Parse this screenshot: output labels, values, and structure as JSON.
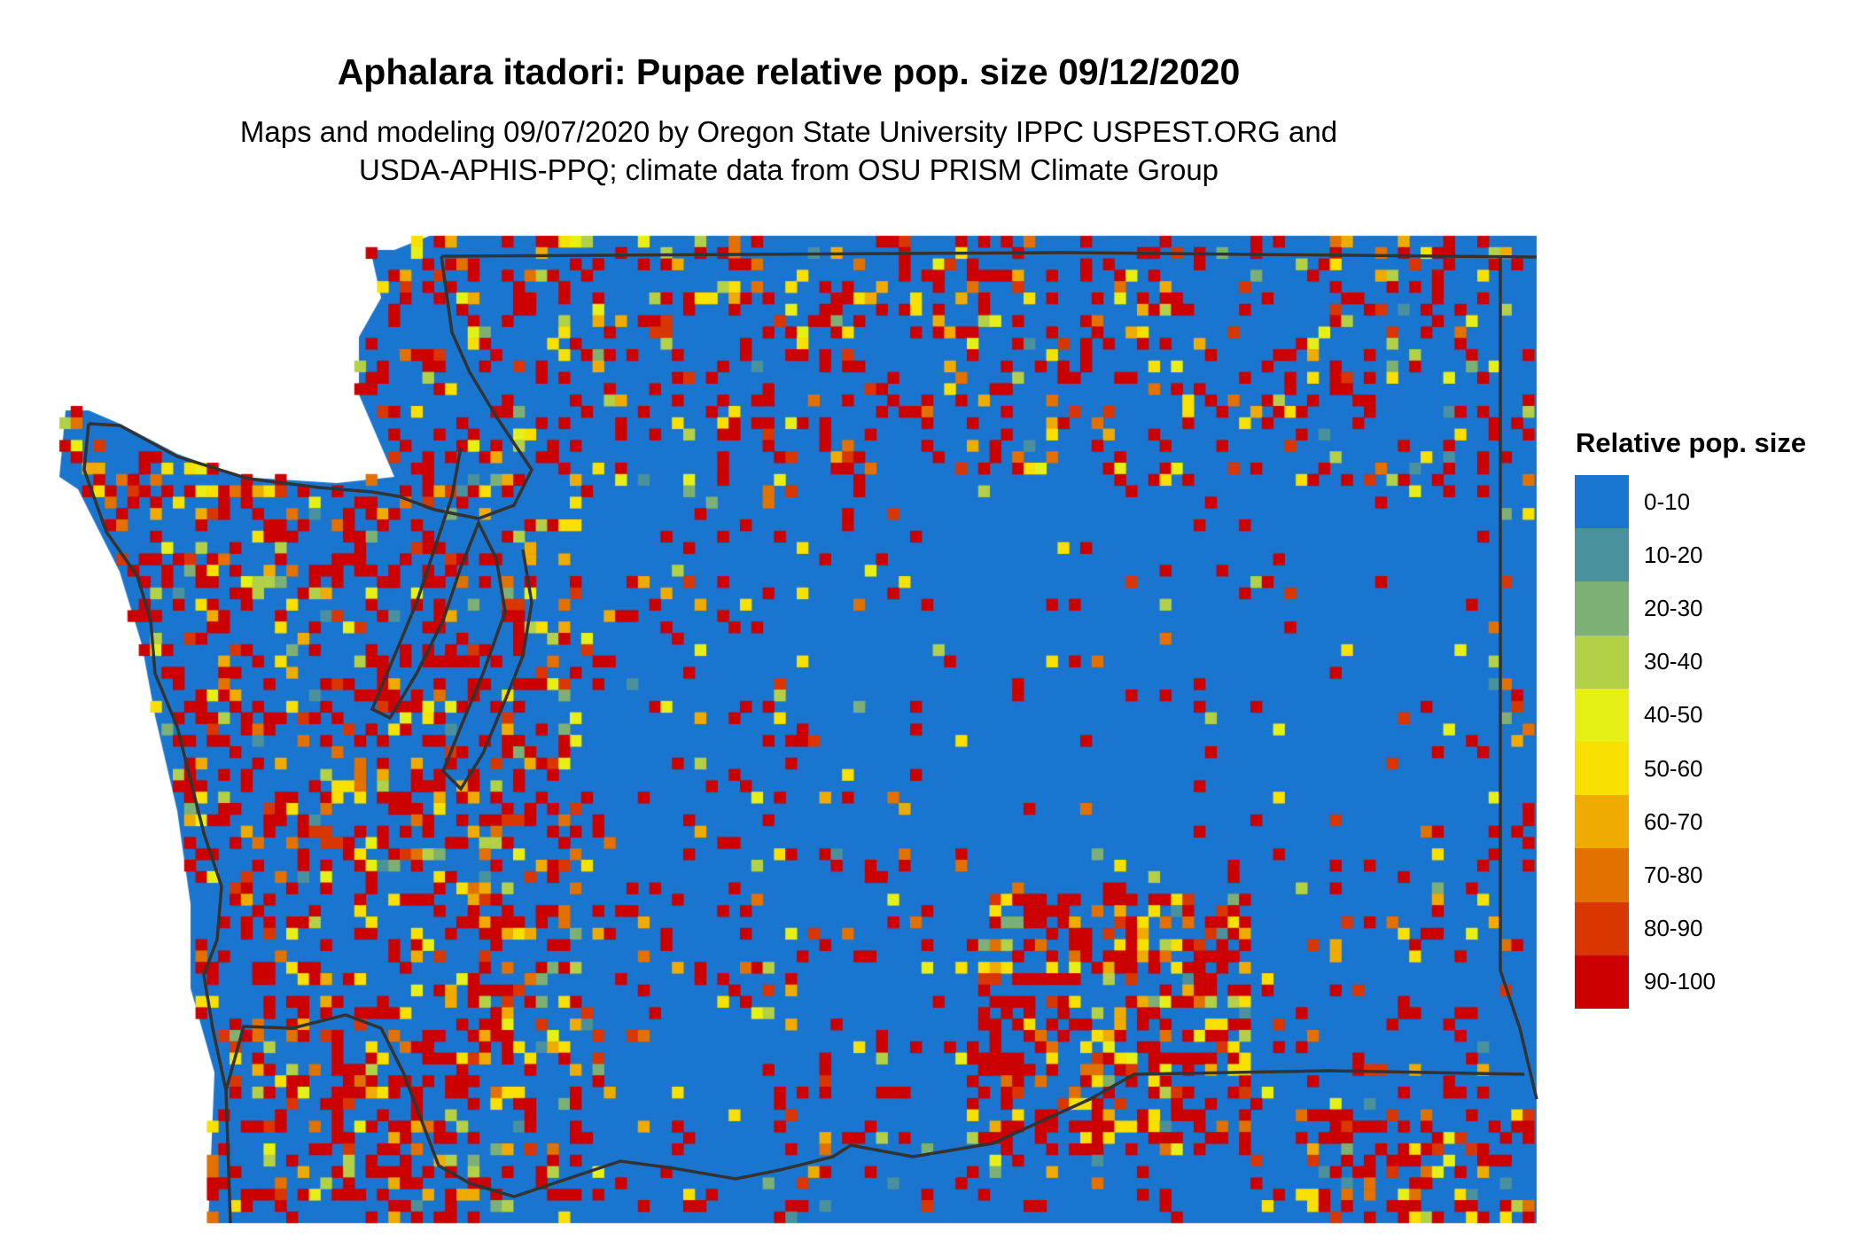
{
  "header": {
    "title": "Aphalara itadori: Pupae relative pop. size 09/12/2020",
    "subtitle_line1": "Maps and modeling 09/07/2020 by Oregon State University IPPC USPEST.ORG and",
    "subtitle_line2": "USDA-APHIS-PPQ; climate data from OSU PRISM Climate Group"
  },
  "map": {
    "region": "Washington State",
    "background_class": "0-10",
    "border_color": "#333333"
  },
  "legend": {
    "title": "Relative pop. size",
    "items": [
      {
        "label": "0-10",
        "color": "#1a75cf"
      },
      {
        "label": "10-20",
        "color": "#4a919e"
      },
      {
        "label": "20-30",
        "color": "#7db074"
      },
      {
        "label": "30-40",
        "color": "#b2d147"
      },
      {
        "label": "40-50",
        "color": "#e6f016"
      },
      {
        "label": "50-60",
        "color": "#f8e000"
      },
      {
        "label": "60-70",
        "color": "#efab00"
      },
      {
        "label": "70-80",
        "color": "#e27100"
      },
      {
        "label": "80-90",
        "color": "#d93600"
      },
      {
        "label": "90-100",
        "color": "#cc0000"
      }
    ]
  }
}
